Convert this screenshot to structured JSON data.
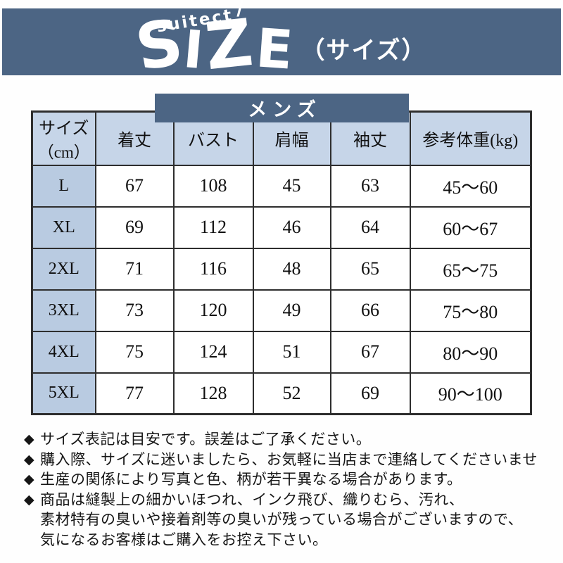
{
  "colors": {
    "banner": "#4c6584",
    "banner_text": "#ffffff",
    "table_header_bg": "#c6d5e8",
    "size_col_bg": "#b9cbe1",
    "cell_bg": "#ffffff",
    "border": "#2e2e2e",
    "text": "#101010"
  },
  "banner": {
    "brand": "suitect",
    "brand_slash_left": "\\",
    "brand_slash_right": "/",
    "title": "SIZE",
    "subtitle": "（サイズ）"
  },
  "section_tab": {
    "label": "メンズ"
  },
  "table": {
    "columns": [
      {
        "label": "サイズ",
        "sublabel": "（cm）"
      },
      {
        "label": "着丈"
      },
      {
        "label": "バスト"
      },
      {
        "label": "肩幅"
      },
      {
        "label": "袖丈"
      },
      {
        "label": "参考体重(kg)"
      }
    ],
    "rows": [
      {
        "cells": [
          "L",
          "67",
          "108",
          "45",
          "63",
          "45～60"
        ]
      },
      {
        "cells": [
          "XL",
          "69",
          "112",
          "46",
          "64",
          "60～67"
        ]
      },
      {
        "cells": [
          "2XL",
          "71",
          "116",
          "48",
          "65",
          "65～75"
        ]
      },
      {
        "cells": [
          "3XL",
          "73",
          "120",
          "49",
          "66",
          "75～80"
        ]
      },
      {
        "cells": [
          "4XL",
          "75",
          "124",
          "51",
          "67",
          "80～90"
        ]
      },
      {
        "cells": [
          "5XL",
          "77",
          "128",
          "52",
          "69",
          "90～100"
        ]
      }
    ]
  },
  "notes": {
    "bullet_char": "◆",
    "items": [
      {
        "text": "サイズ表記は目安です。誤差はご了承ください。",
        "bullet": true
      },
      {
        "text": "購入際、サイズに迷いましたら、お気軽に当店まで連絡してくださいませ",
        "bullet": true
      },
      {
        "text": "生産の関係により写真と色、柄が若干異なる場合があります。",
        "bullet": true
      },
      {
        "text": "商品は縫製上の細かいほつれ、インク飛び、織りむら、汚れ、",
        "bullet": true
      },
      {
        "text": "素材特有の臭いや接着剤等の臭いが残っている場合がございますので、",
        "bullet": false
      },
      {
        "text": "気になるお客様はご購入をお控え下さい。",
        "bullet": false
      }
    ]
  }
}
